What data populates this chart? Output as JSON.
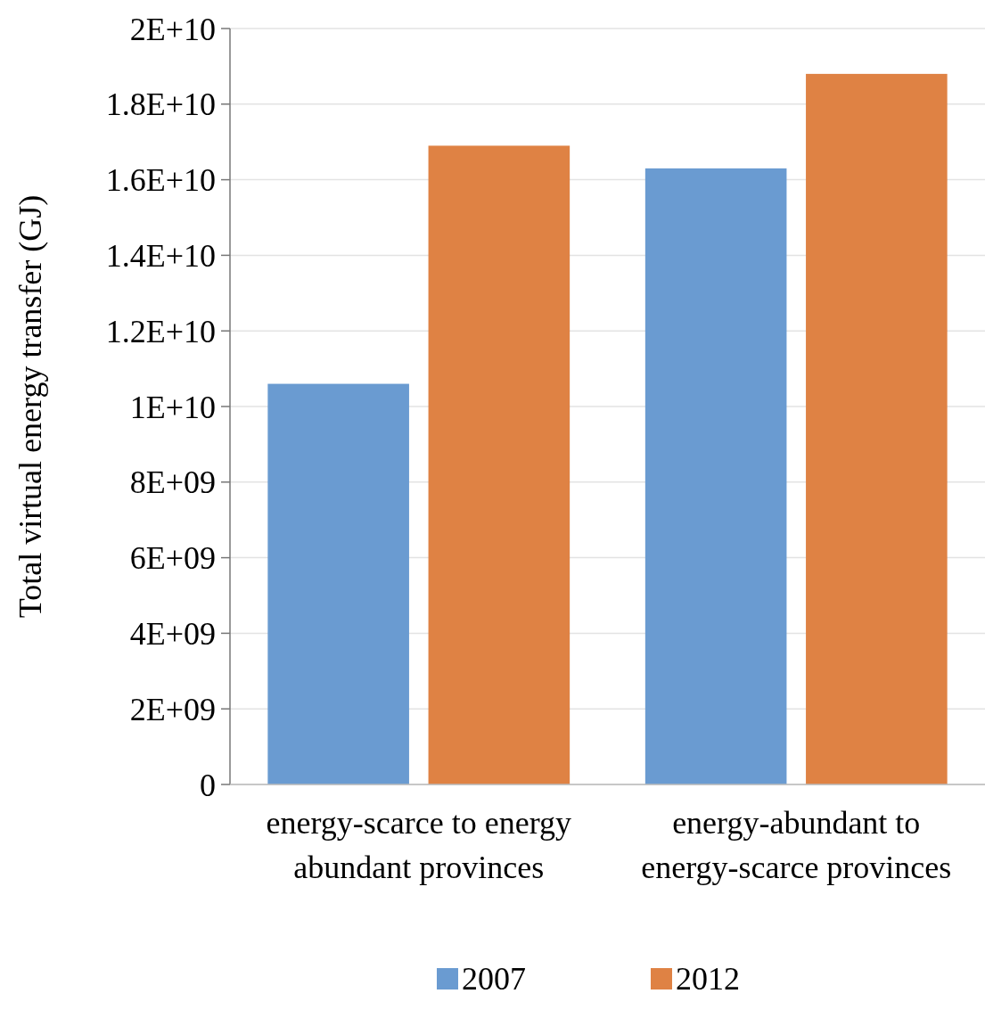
{
  "chart_data": {
    "type": "bar",
    "ylabel": "Total virtual energy transfer (GJ)",
    "categories": [
      "energy-scarce to energy abundant provinces",
      "energy-abundant to energy-scarce provinces"
    ],
    "series": [
      {
        "name": "2007",
        "color": "#6a9bd1",
        "values": [
          10600000000,
          16300000000
        ]
      },
      {
        "name": "2012",
        "color": "#df8244",
        "values": [
          16900000000,
          18800000000
        ]
      }
    ],
    "ylim": [
      0,
      20000000000
    ],
    "yticks": [
      {
        "value": 0,
        "label": "0"
      },
      {
        "value": 2000000000,
        "label": "2E+09"
      },
      {
        "value": 4000000000,
        "label": "4E+09"
      },
      {
        "value": 6000000000,
        "label": "6E+09"
      },
      {
        "value": 8000000000,
        "label": "8E+09"
      },
      {
        "value": 10000000000,
        "label": "1E+10"
      },
      {
        "value": 12000000000,
        "label": "1.2E+10"
      },
      {
        "value": 14000000000,
        "label": "1.4E+10"
      },
      {
        "value": 16000000000,
        "label": "1.6E+10"
      },
      {
        "value": 18000000000,
        "label": "1.8E+10"
      },
      {
        "value": 20000000000,
        "label": "2E+10"
      }
    ],
    "grid": "y",
    "legend": "bottom"
  }
}
